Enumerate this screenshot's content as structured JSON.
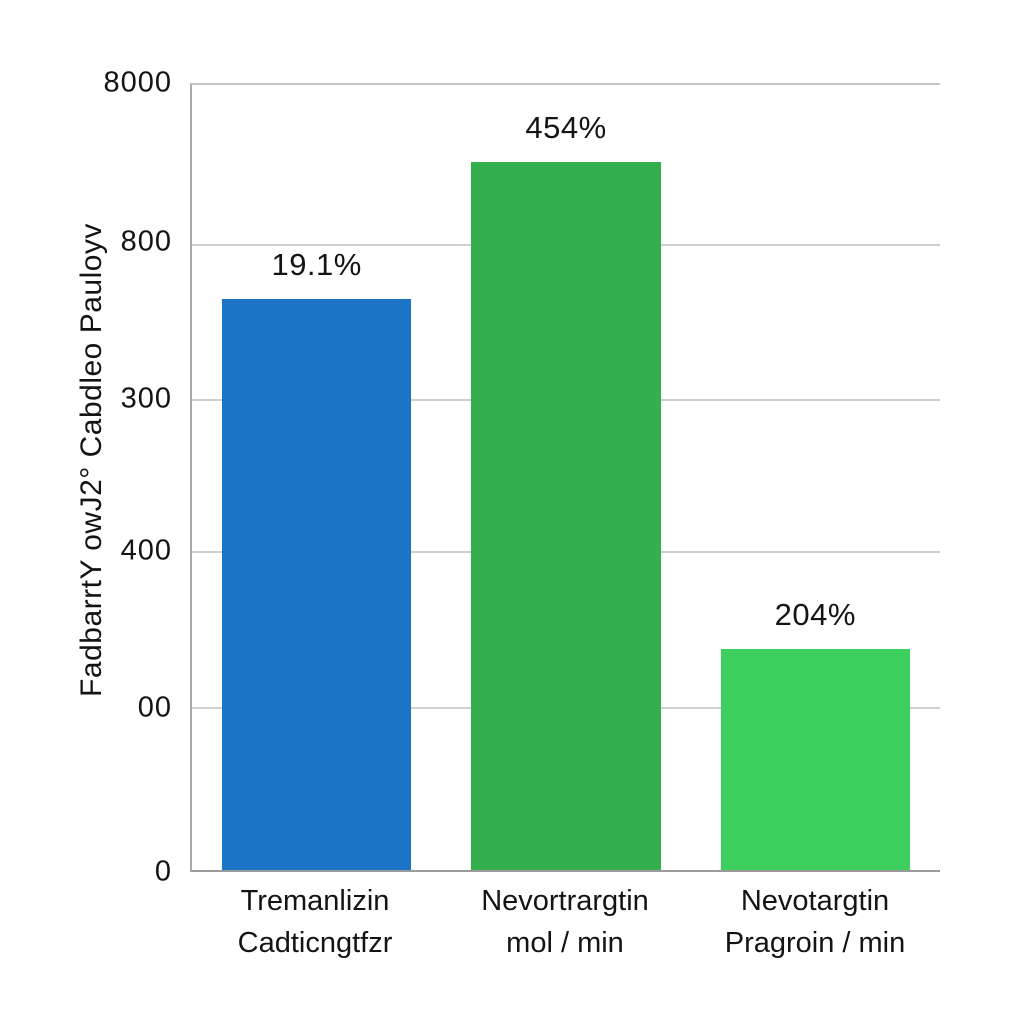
{
  "chart_data": {
    "type": "bar",
    "title": "",
    "xlabel": "",
    "ylabel": "FadbarrtY owJ2° Cabdleo Pauloyv",
    "grid": true,
    "legend": false,
    "background": "#ffffff",
    "gridline_color": "#cfcfcf",
    "y_ticks": [
      {
        "label": "8000",
        "pos": 0.0
      },
      {
        "label": "800",
        "pos": 0.202
      },
      {
        "label": "300",
        "pos": 0.4
      },
      {
        "label": "400",
        "pos": 0.593
      },
      {
        "label": "00",
        "pos": 0.792
      },
      {
        "label": "0",
        "pos": 1.0
      }
    ],
    "bars": [
      {
        "value_label": "19.1%",
        "height_frac": 0.727,
        "color": "#1b74c5",
        "category_line1": "Tremanlizin",
        "category_line2": "Cadticngtfzr"
      },
      {
        "value_label": "454%",
        "height_frac": 0.902,
        "color": "#34af4d",
        "category_line1": "Nevortrargtin",
        "category_line2": "mol / min"
      },
      {
        "value_label": "204%",
        "height_frac": 0.281,
        "color": "#3ccf5d",
        "category_line1": "Nevotargtin",
        "category_line2": "Pragroin / min"
      }
    ]
  }
}
